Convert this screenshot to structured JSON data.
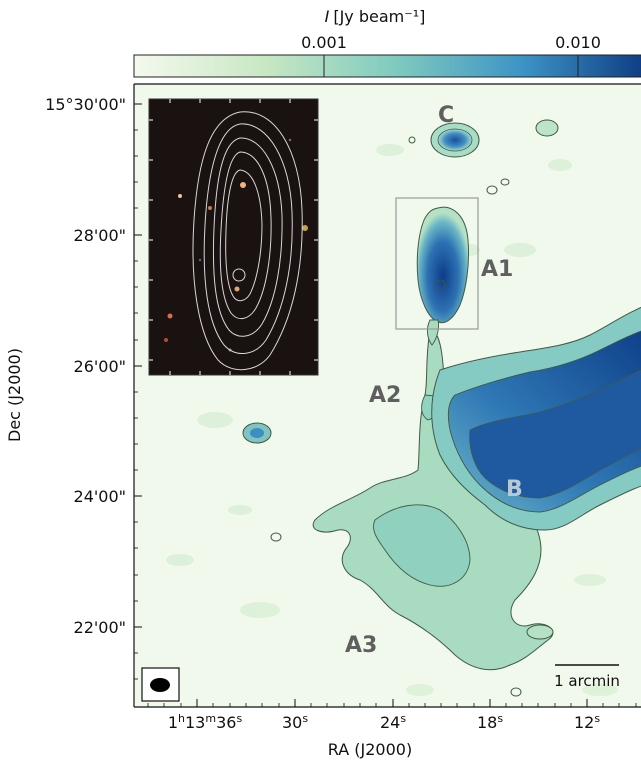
{
  "chart_data": {
    "type": "heatmap",
    "colorbar": {
      "label_symbol": "I",
      "label_unit": "[Jy beam⁻¹]",
      "ticks": [
        "0.001",
        "0.010"
      ],
      "scale": "log",
      "placement": "top",
      "colors": [
        "#f4f9ee",
        "#c6e7c1",
        "#7fcabf",
        "#3f95c6",
        "#0d3c86"
      ]
    },
    "xlabel": "RA (J2000)",
    "ylabel": "Dec (J2000)",
    "x_tick_labels": [
      {
        "h": "1",
        "m": "13",
        "s": "36",
        "text": "1h13m36s"
      },
      {
        "text": "30s"
      },
      {
        "text": "24s"
      },
      {
        "text": "18s"
      },
      {
        "text": "12s"
      }
    ],
    "y_tick_labels": [
      "15°30'00\"",
      "28'00\"",
      "26'00\"",
      "24'00\"",
      "22'00\""
    ],
    "sources": [
      "C",
      "A1",
      "A2",
      "B",
      "A3"
    ],
    "scalebar_label": "1 arcmin",
    "inset": "optical image with contours of A1",
    "beam": "ellipse (lower-left)",
    "colors": {
      "background": "#f1f8ec",
      "contour": "#3f5a45",
      "label": "#5f5f5f",
      "label_B": "#b8c9d4",
      "inset_bg": "#1a1210",
      "inset_contour": "#d8d8d8"
    }
  }
}
